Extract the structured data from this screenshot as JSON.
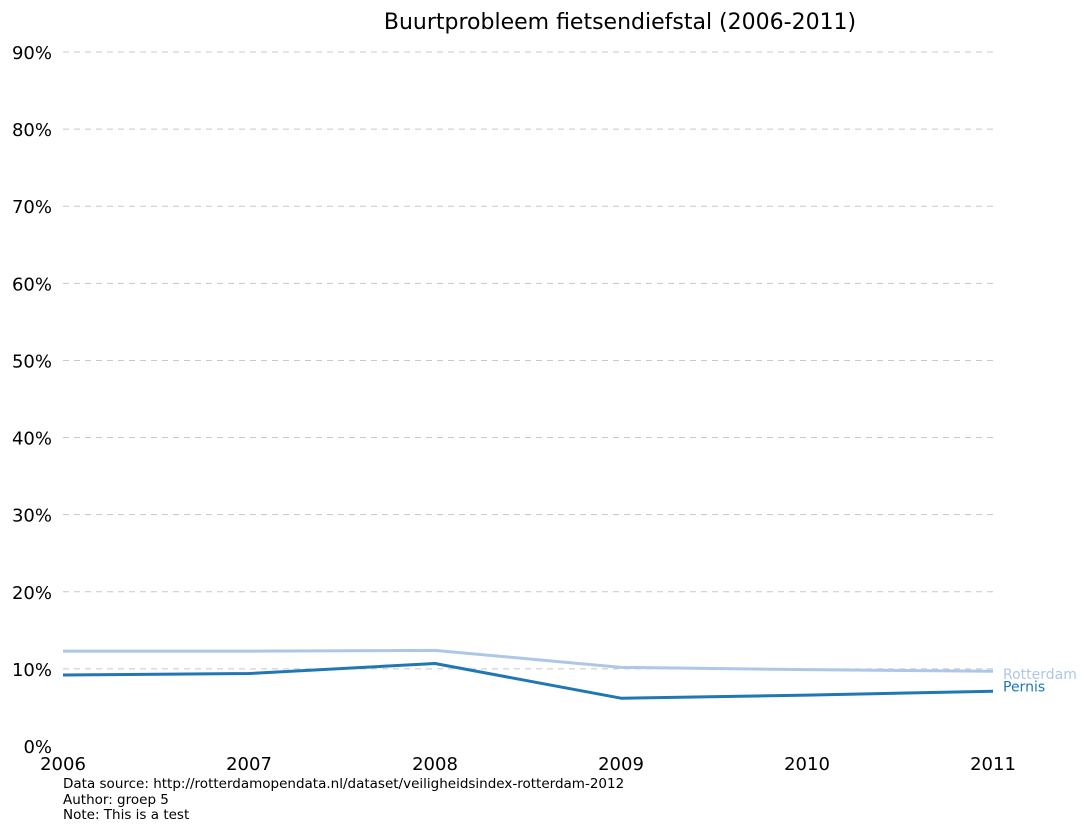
{
  "chart_data": {
    "type": "line",
    "title": "Buurtprobleem fietsendiefstal (2006-2011)",
    "xlabel": "",
    "ylabel": "",
    "x": [
      2006,
      2007,
      2008,
      2009,
      2010,
      2011
    ],
    "xlim": [
      2006,
      2011
    ],
    "ylim": [
      0,
      90
    ],
    "yticks": [
      0,
      10,
      20,
      30,
      40,
      50,
      60,
      70,
      80,
      90
    ],
    "ytick_labels": [
      "0%",
      "10%",
      "20%",
      "30%",
      "40%",
      "50%",
      "60%",
      "70%",
      "80%",
      "90%"
    ],
    "xtick_labels": [
      "2006",
      "2007",
      "2008",
      "2009",
      "2010",
      "2011"
    ],
    "grid": "horizontal-dashed",
    "legend": "inline-right",
    "series": [
      {
        "name": "Rotterdam",
        "color": "#aec7e8",
        "values": [
          12.3,
          12.3,
          12.4,
          10.2,
          9.9,
          9.7
        ]
      },
      {
        "name": "Pernis",
        "color": "#1f77b4",
        "values": [
          9.2,
          9.4,
          10.7,
          6.2,
          6.6,
          7.1
        ]
      }
    ]
  },
  "footer": {
    "source": "Data source: http://rotterdamopendata.nl/dataset/veiligheidsindex-rotterdam-2012",
    "author": "Author: groep 5",
    "note": "Note: This is a test"
  }
}
